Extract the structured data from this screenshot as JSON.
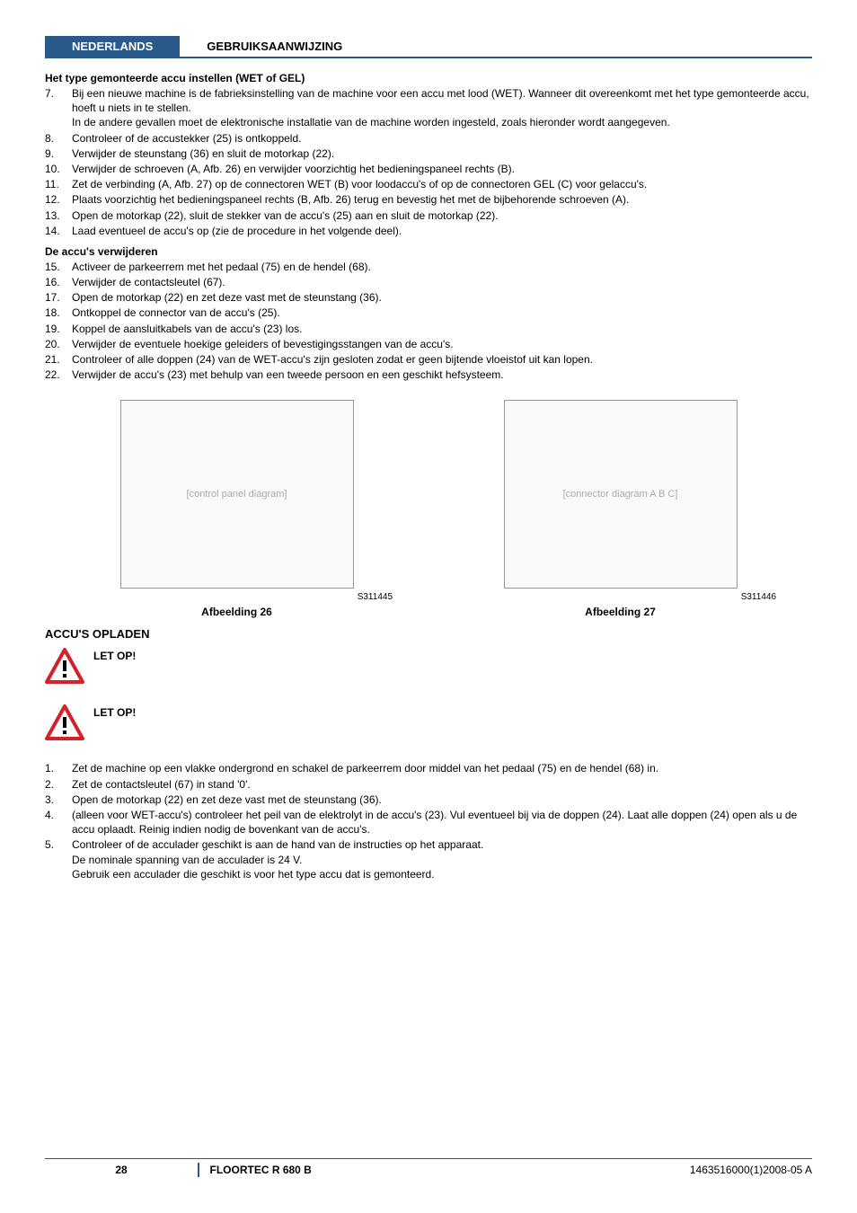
{
  "header": {
    "language": "NEDERLANDS",
    "title": "GEBRUIKSAANWIJZING"
  },
  "section1": {
    "heading": "Het type gemonteerde accu instellen (WET of GEL)",
    "items": [
      {
        "n": "7.",
        "text": "Bij een nieuwe machine is de fabrieksinstelling van de machine voor een accu met lood (WET). Wanneer dit overeenkomt met het type gemonteerde accu, hoeft u niets in te stellen.\nIn de andere gevallen moet de elektronische installatie van de machine worden ingesteld, zoals hieronder wordt aangegeven."
      },
      {
        "n": "8.",
        "text": "Controleer of de accustekker (25) is ontkoppeld."
      },
      {
        "n": "9.",
        "text": "Verwijder de steunstang (36) en sluit de motorkap (22)."
      },
      {
        "n": "10.",
        "text": "Verwijder de schroeven (A, Afb. 26) en verwijder voorzichtig het bedieningspaneel rechts (B)."
      },
      {
        "n": "11.",
        "text": "Zet de verbinding (A, Afb. 27) op de connectoren WET (B) voor loodaccu's of op de connectoren GEL (C) voor gelaccu's."
      },
      {
        "n": "12.",
        "text": "Plaats voorzichtig het bedieningspaneel rechts (B, Afb. 26) terug en bevestig het met de bijbehorende schroeven (A)."
      },
      {
        "n": "13.",
        "text": "Open de motorkap (22), sluit de stekker van de accu's (25) aan en sluit de motorkap (22)."
      },
      {
        "n": "14.",
        "text": "Laad eventueel de accu's op (zie de procedure in het volgende deel)."
      }
    ]
  },
  "section2": {
    "heading": "De accu's verwijderen",
    "items": [
      {
        "n": "15.",
        "text": "Activeer de parkeerrem met het pedaal (75) en de hendel (68)."
      },
      {
        "n": "16.",
        "text": "Verwijder de contactsleutel (67)."
      },
      {
        "n": "17.",
        "text": "Open de motorkap (22) en zet deze vast met de steunstang (36)."
      },
      {
        "n": "18.",
        "text": "Ontkoppel de connector van de accu's (25)."
      },
      {
        "n": "19.",
        "text": "Koppel de aansluitkabels van de accu's (23) los."
      },
      {
        "n": "20.",
        "text": "Verwijder de eventuele hoekige geleiders of bevestigingsstangen van de accu's."
      },
      {
        "n": "21.",
        "text": "Controleer of alle doppen (24) van de WET-accu's zijn gesloten zodat er geen bijtende vloeistof uit kan lopen."
      },
      {
        "n": "22.",
        "text": "Verwijder de accu's (23) met behulp van een tweede persoon en een geschikt hefsysteem."
      }
    ]
  },
  "figures": {
    "fig1": {
      "id": "S311445",
      "caption": "Afbeelding 26",
      "placeholder": "[control panel diagram]"
    },
    "fig2": {
      "id": "S311446",
      "caption": "Afbeelding 27",
      "placeholder": "[connector diagram A B C]"
    }
  },
  "section3": {
    "title": "ACCU'S OPLADEN",
    "warning1": "LET OP!",
    "warning2": "LET OP!",
    "items": [
      {
        "n": "1.",
        "text": "Zet de machine op een vlakke ondergrond en schakel de parkeerrem door middel van het pedaal (75) en de hendel (68) in."
      },
      {
        "n": "2.",
        "text": "Zet de contactsleutel (67) in stand '0'."
      },
      {
        "n": "3.",
        "text": "Open de motorkap (22) en zet deze vast met de steunstang (36)."
      },
      {
        "n": "4.",
        "text": "(alleen voor WET-accu's) controleer het peil van de elektrolyt in de accu's (23). Vul eventueel bij via de doppen (24). Laat alle doppen (24) open als u de accu oplaadt. Reinig indien nodig de bovenkant van de accu's."
      },
      {
        "n": "5.",
        "text": "Controleer of de acculader geschikt is aan de hand van de instructies op het apparaat.\nDe nominale spanning van de acculader is 24 V.\nGebruik een acculader die geschikt is voor het type accu dat is gemonteerd."
      }
    ]
  },
  "footer": {
    "page": "28",
    "model": "FLOORTEC R 680 B",
    "doc": "1463516000(1)2008-05 A"
  },
  "colors": {
    "accent": "#2a5a8a",
    "warning_red": "#d4202a"
  }
}
